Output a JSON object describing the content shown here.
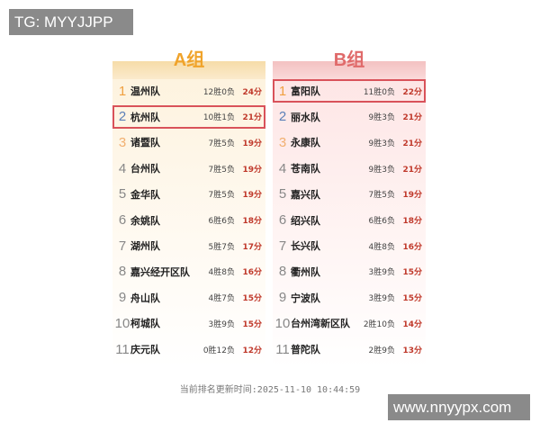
{
  "watermarks": {
    "top_left": "TG: MYYJJPP",
    "bottom_right": "www.nnyypx.com"
  },
  "groups": [
    {
      "title": "A组",
      "highlight_rank": 2,
      "teams": [
        {
          "rank": "1",
          "name": "温州队",
          "record": "12胜0负",
          "points": "24分"
        },
        {
          "rank": "2",
          "name": "杭州队",
          "record": "10胜1负",
          "points": "21分"
        },
        {
          "rank": "3",
          "name": "诸暨队",
          "record": "7胜5负",
          "points": "19分"
        },
        {
          "rank": "4",
          "name": "台州队",
          "record": "7胜5负",
          "points": "19分"
        },
        {
          "rank": "5",
          "name": "金华队",
          "record": "7胜5负",
          "points": "19分"
        },
        {
          "rank": "6",
          "name": "余姚队",
          "record": "6胜6负",
          "points": "18分"
        },
        {
          "rank": "7",
          "name": "湖州队",
          "record": "5胜7负",
          "points": "17分"
        },
        {
          "rank": "8",
          "name": "嘉兴经开区队",
          "record": "4胜8负",
          "points": "16分"
        },
        {
          "rank": "9",
          "name": "舟山队",
          "record": "4胜7负",
          "points": "15分"
        },
        {
          "rank": "10",
          "name": "柯城队",
          "record": "3胜9负",
          "points": "15分"
        },
        {
          "rank": "11",
          "name": "庆元队",
          "record": "0胜12负",
          "points": "12分"
        }
      ]
    },
    {
      "title": "B组",
      "highlight_rank": 1,
      "teams": [
        {
          "rank": "1",
          "name": "富阳队",
          "record": "11胜0负",
          "points": "22分"
        },
        {
          "rank": "2",
          "name": "丽水队",
          "record": "9胜3负",
          "points": "21分"
        },
        {
          "rank": "3",
          "name": "永康队",
          "record": "9胜3负",
          "points": "21分"
        },
        {
          "rank": "4",
          "name": "苍南队",
          "record": "9胜3负",
          "points": "21分"
        },
        {
          "rank": "5",
          "name": "嘉兴队",
          "record": "7胜5负",
          "points": "19分"
        },
        {
          "rank": "6",
          "name": "绍兴队",
          "record": "6胜6负",
          "points": "18分"
        },
        {
          "rank": "7",
          "name": "长兴队",
          "record": "4胜8负",
          "points": "16分"
        },
        {
          "rank": "8",
          "name": "衢州队",
          "record": "3胜9负",
          "points": "15分"
        },
        {
          "rank": "9",
          "name": "宁波队",
          "record": "3胜9负",
          "points": "15分"
        },
        {
          "rank": "10",
          "name": "台州湾新区队",
          "record": "2胜10负",
          "points": "14分"
        },
        {
          "rank": "11",
          "name": "普陀队",
          "record": "2胜9负",
          "points": "13分"
        }
      ]
    }
  ],
  "rank_colors": {
    "1": "#f0a040",
    "2": "#5a7fb8",
    "3": "#f2b070",
    "other": "#888888"
  },
  "footer": "当前排名更新时间:2025-11-10 10:44:59"
}
